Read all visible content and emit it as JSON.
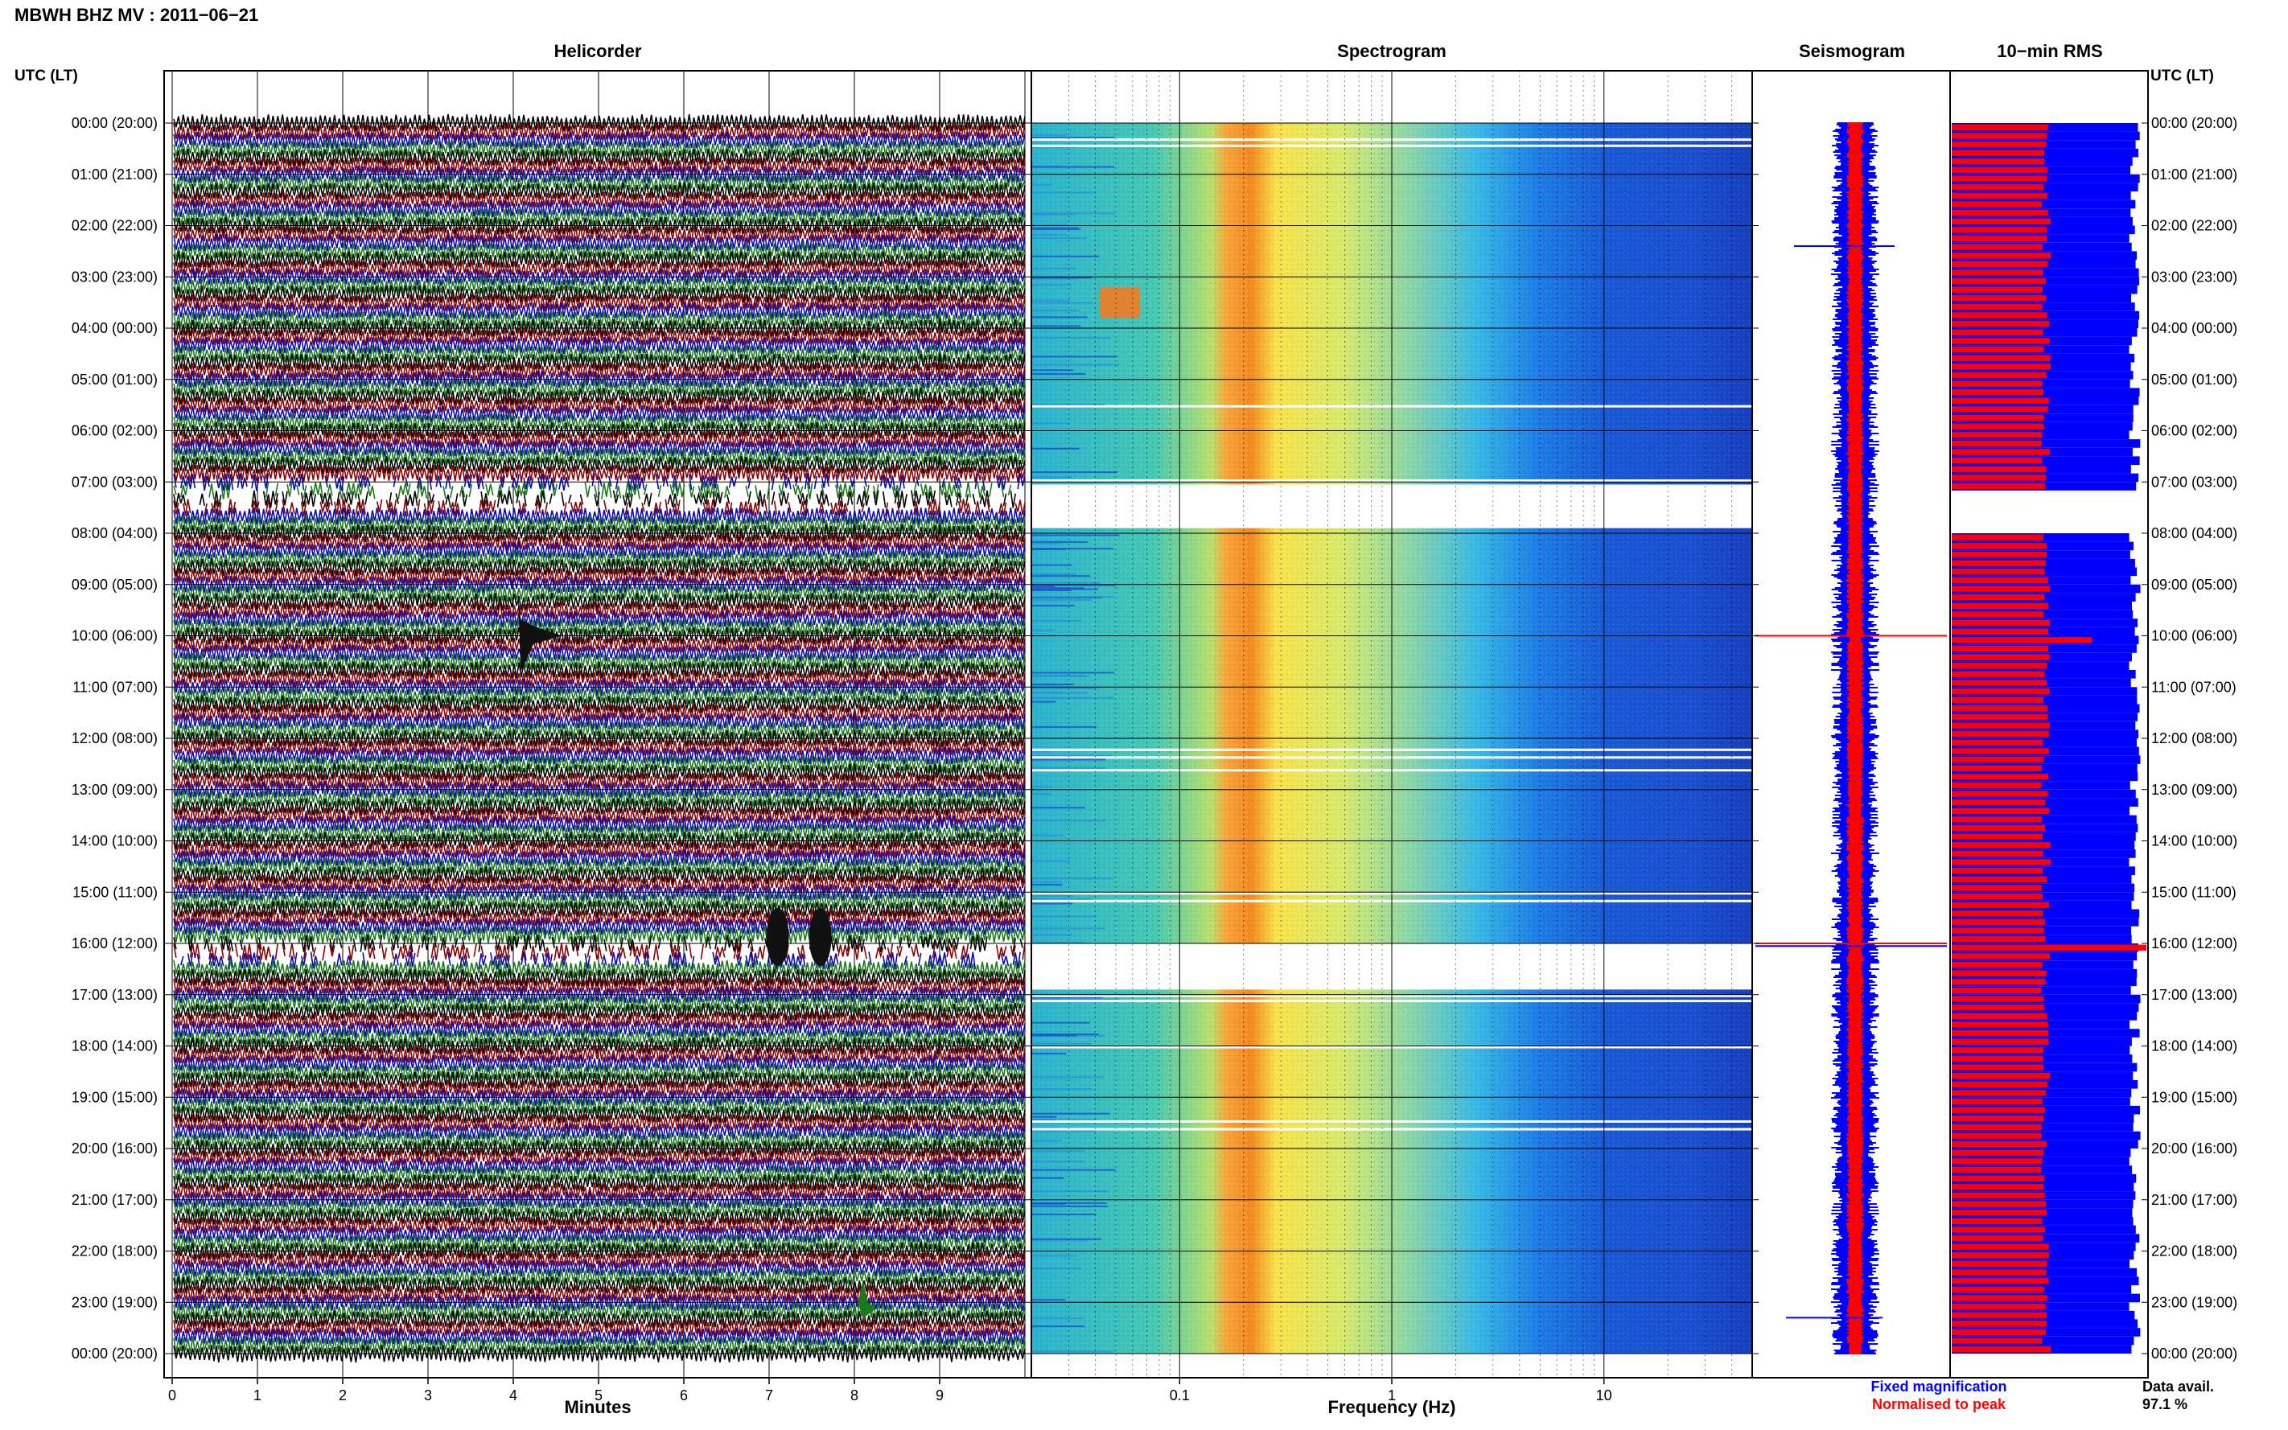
{
  "header": {
    "title": "MBWH BHZ MV : 2011−06−21"
  },
  "colors": {
    "trace_cycle": [
      "#000000",
      "#8b0000",
      "#0a0ab4",
      "#1a7a1a"
    ],
    "fixed_magnification": "#0000ff",
    "normalised_to_peak": "#ff0000"
  },
  "chart_data": [
    {
      "type": "line",
      "title": "Helicorder",
      "xlabel": "Minutes",
      "ylabel": "",
      "row_axis_label": "UTC (LT)",
      "x_ticks": [
        "0",
        "1",
        "2",
        "3",
        "4",
        "5",
        "6",
        "7",
        "8",
        "9"
      ],
      "xlim": [
        0,
        10
      ],
      "rows_per_hour": 6,
      "hour_labels": [
        "00:00 (20:00)",
        "01:00 (21:00)",
        "02:00 (22:00)",
        "03:00 (23:00)",
        "04:00 (00:00)",
        "05:00 (01:00)",
        "06:00 (02:00)",
        "07:00 (03:00)",
        "08:00 (04:00)",
        "09:00 (05:00)",
        "10:00 (06:00)",
        "11:00 (07:00)",
        "12:00 (08:00)",
        "13:00 (09:00)",
        "14:00 (10:00)",
        "15:00 (11:00)",
        "16:00 (12:00)",
        "17:00 (13:00)",
        "18:00 (14:00)",
        "19:00 (15:00)",
        "20:00 (16:00)",
        "21:00 (17:00)",
        "22:00 (18:00)",
        "23:00 (19:00)",
        "00:00 (20:00)"
      ],
      "gaps_utc_hours": [
        7.25,
        16.1
      ],
      "events": [
        {
          "utc_hour": 10.0,
          "minute": 4.05,
          "note": ""
        },
        {
          "utc_hour": 16.0,
          "minute": 7.1,
          "note": ""
        },
        {
          "utc_hour": 16.0,
          "minute": 7.6,
          "note": ""
        },
        {
          "utc_hour": 23.0,
          "minute": 8.1,
          "note": ""
        }
      ]
    },
    {
      "type": "heatmap",
      "title": "Spectrogram",
      "xlabel": "Frequency (Hz)",
      "x_scale": "log",
      "xlim": [
        0.02,
        50
      ],
      "x_ticks": [
        "0.1",
        "1",
        "10"
      ],
      "ylim_utc_hours": [
        0,
        24
      ],
      "peak_band_hz": [
        0.17,
        0.35
      ],
      "no_data_utc_hours": [
        [
          7.05,
          7.9
        ],
        [
          16.0,
          16.9
        ]
      ]
    },
    {
      "type": "line",
      "title": "Seismogram",
      "series": [
        {
          "name": "Fixed magnification",
          "color": "#0000ff"
        },
        {
          "name": "Normalised to peak",
          "color": "#ff0000"
        }
      ]
    },
    {
      "type": "bar",
      "title": "10−min RMS",
      "orientation": "horizontal",
      "bin_minutes": 10,
      "normalised_to_peak_level": 0.5,
      "fixed_magnification_level": 0.95,
      "peaks_utc_hours": [
        10.0,
        16.0
      ]
    }
  ],
  "footer": {
    "legend_fixed": "Fixed magnification",
    "legend_normalised": "Normalised to peak",
    "avail_label": "Data avail.",
    "avail_value": "97.1 %"
  }
}
